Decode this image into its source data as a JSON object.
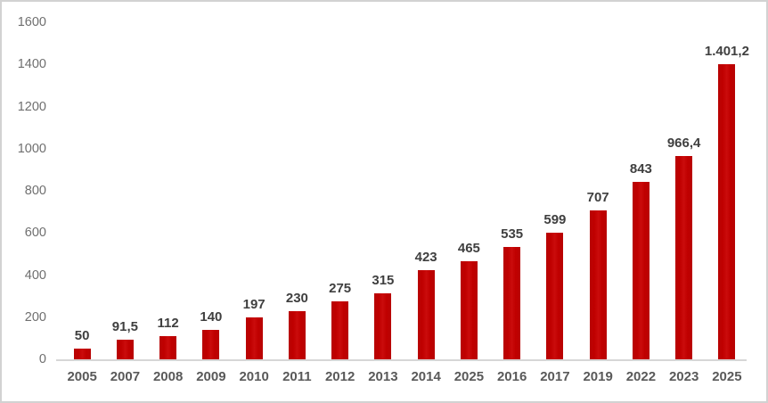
{
  "chart_data": {
    "type": "bar",
    "title": "",
    "xlabel": "",
    "ylabel": "",
    "categories": [
      "2005",
      "2007",
      "2008",
      "2009",
      "2010",
      "2011",
      "2012",
      "2013",
      "2014",
      "2025",
      "2016",
      "2017",
      "2019",
      "2022",
      "2023",
      "2025"
    ],
    "values": [
      50,
      91.5,
      112,
      140,
      197,
      230,
      275,
      315,
      423,
      465,
      535,
      599,
      707,
      843,
      966.4,
      1401.2
    ],
    "value_labels": [
      "50",
      "91,5",
      "112",
      "140",
      "197",
      "230",
      "275",
      "315",
      "423",
      "465",
      "535",
      "599",
      "707",
      "843",
      "966,4",
      "1.401,2"
    ],
    "ylim": [
      0,
      1600
    ],
    "yticks": [
      0,
      200,
      400,
      600,
      800,
      1000,
      1200,
      1400,
      1600
    ],
    "grid": false,
    "legend": "none",
    "colors": {
      "bar": "#c00000",
      "value_label": "#3f3f3f",
      "x_tick_label": "#595959",
      "y_tick_label": "#6f6f6f",
      "axis_line": "#d6d6d6",
      "frame_border": "#d2d2d2",
      "background": "#ffffff"
    }
  }
}
